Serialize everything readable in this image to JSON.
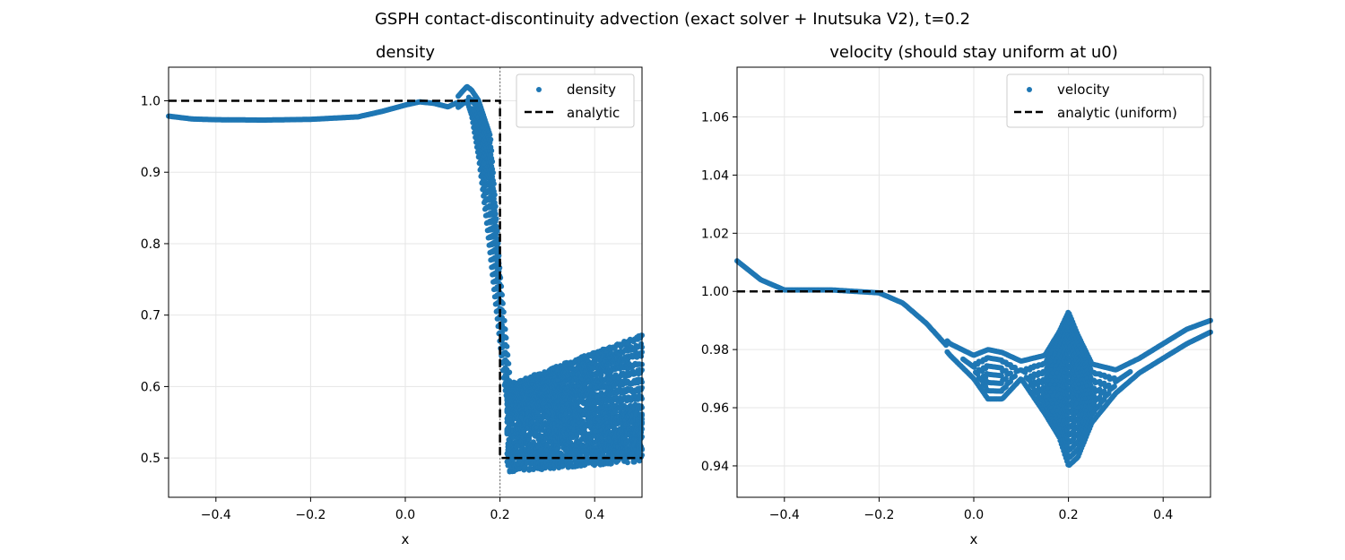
{
  "figure": {
    "suptitle": "GSPH contact-discontinuity advection (exact solver + Inutsuka V2), t=0.2"
  },
  "colors": {
    "points": "#1f77b4",
    "analytic": "#000000",
    "grid": "#e6e6e6",
    "marker_line": "#808080"
  },
  "chart_data": [
    {
      "type": "scatter",
      "title": "density",
      "xlabel": "x",
      "ylabel": "",
      "xlim": [
        -0.5,
        0.5
      ],
      "ylim": [
        0.445,
        1.047
      ],
      "xticks": [
        -0.4,
        -0.2,
        0.0,
        0.2,
        0.4
      ],
      "xtick_labels": [
        "−0.4",
        "−0.2",
        "0.0",
        "0.2",
        "0.4"
      ],
      "yticks": [
        0.5,
        0.6,
        0.7,
        0.8,
        0.9,
        1.0
      ],
      "ytick_labels": [
        "0.5",
        "0.6",
        "0.7",
        "0.8",
        "0.9",
        "1.0"
      ],
      "grid": true,
      "legend_position": "top-right",
      "vline_x": 0.2,
      "series": [
        {
          "name": "density",
          "kind": "scatter-band",
          "x": [
            -0.5,
            -0.45,
            -0.4,
            -0.3,
            -0.2,
            -0.1,
            -0.05,
            0.0,
            0.03,
            0.06,
            0.09,
            0.11,
            0.13,
            0.14,
            0.155,
            0.17,
            0.18,
            0.19,
            0.2,
            0.21,
            0.22
          ],
          "y_low": [
            0.975,
            0.972,
            0.971,
            0.971,
            0.972,
            0.975,
            0.982,
            0.99,
            0.993,
            0.99,
            0.985,
            0.99,
            1.0,
            0.98,
            0.92,
            0.84,
            0.78,
            0.72,
            0.66,
            0.6,
            0.56
          ],
          "y_high": [
            0.982,
            0.977,
            0.976,
            0.975,
            0.976,
            0.98,
            0.988,
            0.998,
            1.004,
            1.003,
            0.998,
            1.005,
            1.02,
            1.015,
            1.0,
            0.97,
            0.95,
            0.86,
            0.76,
            0.69,
            0.62
          ]
        },
        {
          "name": "density",
          "kind": "scatter-noisy-region",
          "x_range": [
            0.215,
            0.5
          ],
          "y_range_low": [
            0.475,
            0.49
          ],
          "y_range_high": [
            0.6,
            0.67
          ],
          "stripe_count": 9
        },
        {
          "name": "analytic",
          "kind": "line",
          "x": [
            -0.5,
            0.2,
            0.2,
            0.5
          ],
          "y": [
            1.0,
            1.0,
            0.5,
            0.5
          ]
        }
      ]
    },
    {
      "type": "scatter",
      "title": "velocity (should stay uniform at u0)",
      "xlabel": "x",
      "ylabel": "",
      "xlim": [
        -0.5,
        0.5
      ],
      "ylim": [
        0.9292,
        1.0771
      ],
      "xticks": [
        -0.4,
        -0.2,
        0.0,
        0.2,
        0.4
      ],
      "xtick_labels": [
        "−0.4",
        "−0.2",
        "0.0",
        "0.2",
        "0.4"
      ],
      "yticks": [
        0.94,
        0.96,
        0.98,
        1.0,
        1.02,
        1.04,
        1.06
      ],
      "ytick_labels": [
        "0.94",
        "0.96",
        "0.98",
        "1.00",
        "1.02",
        "1.04",
        "1.06"
      ],
      "grid": true,
      "legend_position": "top-right",
      "series": [
        {
          "name": "velocity",
          "kind": "scatter-band",
          "x": [
            -0.5,
            -0.45,
            -0.4,
            -0.35,
            -0.3,
            -0.2,
            -0.15,
            -0.1,
            -0.05,
            0.0,
            0.03,
            0.06,
            0.1,
            0.15,
            0.18,
            0.2,
            0.22,
            0.25,
            0.3,
            0.35,
            0.4,
            0.45,
            0.5
          ],
          "y_low": [
            1.009,
            1.003,
            1.0,
            1.0,
            1.0,
            0.999,
            0.995,
            0.988,
            0.978,
            0.97,
            0.963,
            0.963,
            0.97,
            0.958,
            0.95,
            0.94,
            0.943,
            0.955,
            0.965,
            0.972,
            0.977,
            0.982,
            0.986
          ],
          "y_high": [
            1.012,
            1.005,
            1.001,
            1.001,
            1.001,
            1.0,
            0.997,
            0.99,
            0.982,
            0.978,
            0.98,
            0.979,
            0.976,
            0.978,
            0.986,
            0.993,
            0.985,
            0.975,
            0.973,
            0.977,
            0.982,
            0.987,
            0.99
          ]
        },
        {
          "name": "analytic (uniform)",
          "kind": "line",
          "x": [
            -0.5,
            0.5
          ],
          "y": [
            1.0,
            1.0
          ]
        }
      ]
    }
  ],
  "legends": [
    {
      "entries": [
        "density",
        "analytic"
      ]
    },
    {
      "entries": [
        "velocity",
        "analytic (uniform)"
      ]
    }
  ]
}
